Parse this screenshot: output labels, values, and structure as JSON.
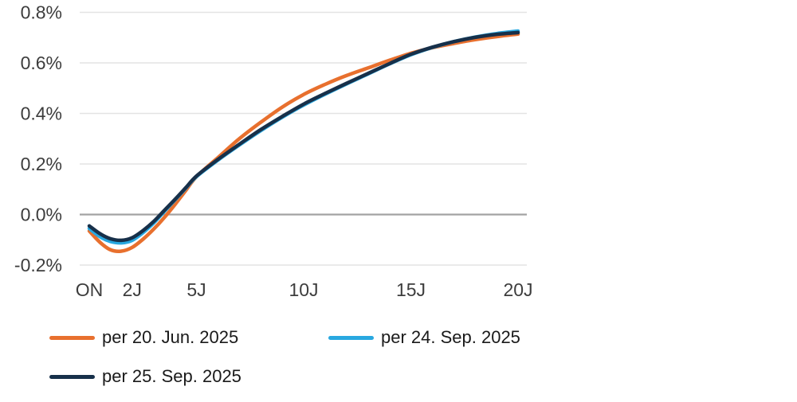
{
  "chart_data": {
    "type": "line",
    "title": "",
    "xlabel": "",
    "ylabel": "",
    "grid": "horizontal-only",
    "legend_position": "bottom-left",
    "x_axis": {
      "range_years": [
        0,
        20
      ],
      "ticks": [
        {
          "label": "ON",
          "years": 0
        },
        {
          "label": "2J",
          "years": 2
        },
        {
          "label": "5J",
          "years": 5
        },
        {
          "label": "10J",
          "years": 10
        },
        {
          "label": "15J",
          "years": 15
        },
        {
          "label": "20J",
          "years": 20
        }
      ]
    },
    "y_axis": {
      "range": [
        -0.28,
        0.84
      ],
      "ticks": [
        {
          "label": "0.8%",
          "value": 0.8
        },
        {
          "label": "0.6%",
          "value": 0.6
        },
        {
          "label": "0.4%",
          "value": 0.4
        },
        {
          "label": "0.2%",
          "value": 0.2
        },
        {
          "label": "0.0%",
          "value": 0.0
        },
        {
          "label": "-0.2%",
          "value": -0.2
        }
      ],
      "zero_line_color": "#a3a3a3",
      "grid_color": "#e3e3e3"
    },
    "x_years": [
      0,
      0.5,
      1,
      1.5,
      2,
      2.5,
      3,
      3.5,
      4,
      4.5,
      5,
      6,
      7,
      8,
      9,
      10,
      11,
      12,
      13,
      14,
      15,
      16,
      17,
      18,
      19,
      20
    ],
    "series": [
      {
        "name": "per 20. Jun. 2025",
        "color": "#e8702e",
        "values": [
          -0.065,
          -0.11,
          -0.14,
          -0.145,
          -0.13,
          -0.098,
          -0.058,
          -0.012,
          0.04,
          0.095,
          0.15,
          0.225,
          0.3,
          0.365,
          0.425,
          0.475,
          0.515,
          0.55,
          0.58,
          0.61,
          0.638,
          0.66,
          0.677,
          0.692,
          0.704,
          0.714
        ]
      },
      {
        "name": "per 24. Sep. 2025",
        "color": "#29a8e0",
        "values": [
          -0.055,
          -0.088,
          -0.107,
          -0.112,
          -0.102,
          -0.072,
          -0.034,
          0.012,
          0.058,
          0.104,
          0.15,
          0.215,
          0.275,
          0.332,
          0.385,
          0.433,
          0.476,
          0.517,
          0.556,
          0.596,
          0.632,
          0.661,
          0.684,
          0.702,
          0.716,
          0.726
        ]
      },
      {
        "name": "per 25. Sep. 2025",
        "color": "#17304a",
        "values": [
          -0.045,
          -0.076,
          -0.096,
          -0.102,
          -0.092,
          -0.064,
          -0.028,
          0.016,
          0.06,
          0.106,
          0.152,
          0.218,
          0.278,
          0.336,
          0.388,
          0.437,
          0.479,
          0.519,
          0.558,
          0.597,
          0.634,
          0.662,
          0.684,
          0.701,
          0.713,
          0.72
        ]
      }
    ]
  }
}
